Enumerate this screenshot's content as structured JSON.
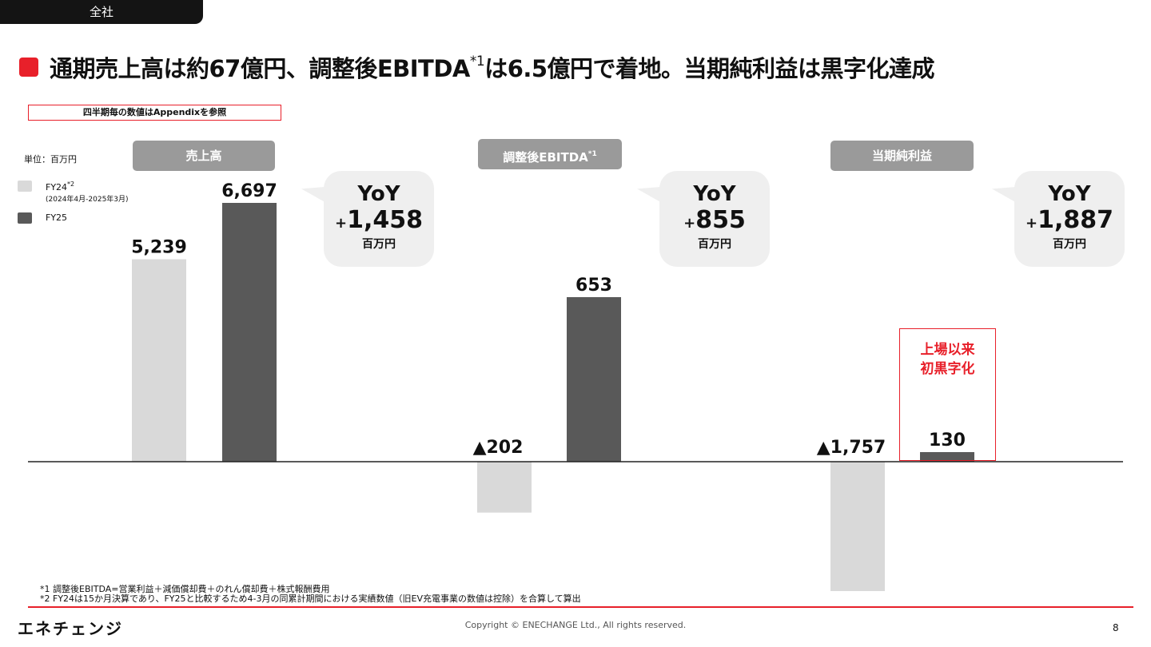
{
  "tag": "全社",
  "title": {
    "main": "通期売上高は約67億円、調整後EBITDA",
    "sup": "*1",
    "rest": "は6.5億円で着地。当期純利益は黒字化達成"
  },
  "appendix_note": "四半期毎の数値はAppendixを参照",
  "unit_label": "単位：百万円",
  "legend": {
    "fy24": {
      "label": "FY24",
      "sup": "*2",
      "sub": "(2024年4月-2025年3月)"
    },
    "fy25": {
      "label": "FY25"
    }
  },
  "colors": {
    "fy24": "#d9d9d9",
    "fy25": "#595959",
    "accent": "#e8202a",
    "header_bg": "#9a9a9a",
    "bubble_bg": "#efefef"
  },
  "panels": [
    {
      "header": "売上高",
      "header_sup": "",
      "yoy_label": "YoY",
      "yoy_sign": "+",
      "yoy_value": "1,458",
      "yoy_unit": "百万円"
    },
    {
      "header": "調整後EBITDA",
      "header_sup": "*1",
      "yoy_label": "YoY",
      "yoy_sign": "+",
      "yoy_value": "855",
      "yoy_unit": "百万円"
    },
    {
      "header": "当期純利益",
      "header_sup": "",
      "yoy_label": "YoY",
      "yoy_sign": "+",
      "yoy_value": "1,887",
      "yoy_unit": "百万円"
    }
  ],
  "highlight": {
    "line1": "上場以来",
    "line2": "初黒字化"
  },
  "chart_data": {
    "type": "bar",
    "unit": "百万円",
    "categories": [
      "売上高",
      "調整後EBITDA",
      "当期純利益"
    ],
    "series": [
      {
        "name": "FY24",
        "values": [
          5239,
          -202,
          -1757
        ],
        "labels": [
          "5,239",
          "▲202",
          "▲1,757"
        ]
      },
      {
        "name": "FY25",
        "values": [
          6697,
          653,
          130
        ],
        "labels": [
          "6,697",
          "653",
          "130"
        ]
      }
    ]
  },
  "footnotes": [
    "*1 調整後EBITDA=営業利益＋減価償却費＋のれん償却費＋株式報酬費用",
    "*2 FY24は15か月決算であり、FY25と比較するため4-3月の同累計期間における実績数値（旧EV充電事業の数値は控除）を合算して算出"
  ],
  "footer": {
    "logo": "エネチェンジ",
    "copyright": "Copyright ©  ENECHANGE Ltd.,  All rights reserved.",
    "page": "8"
  }
}
